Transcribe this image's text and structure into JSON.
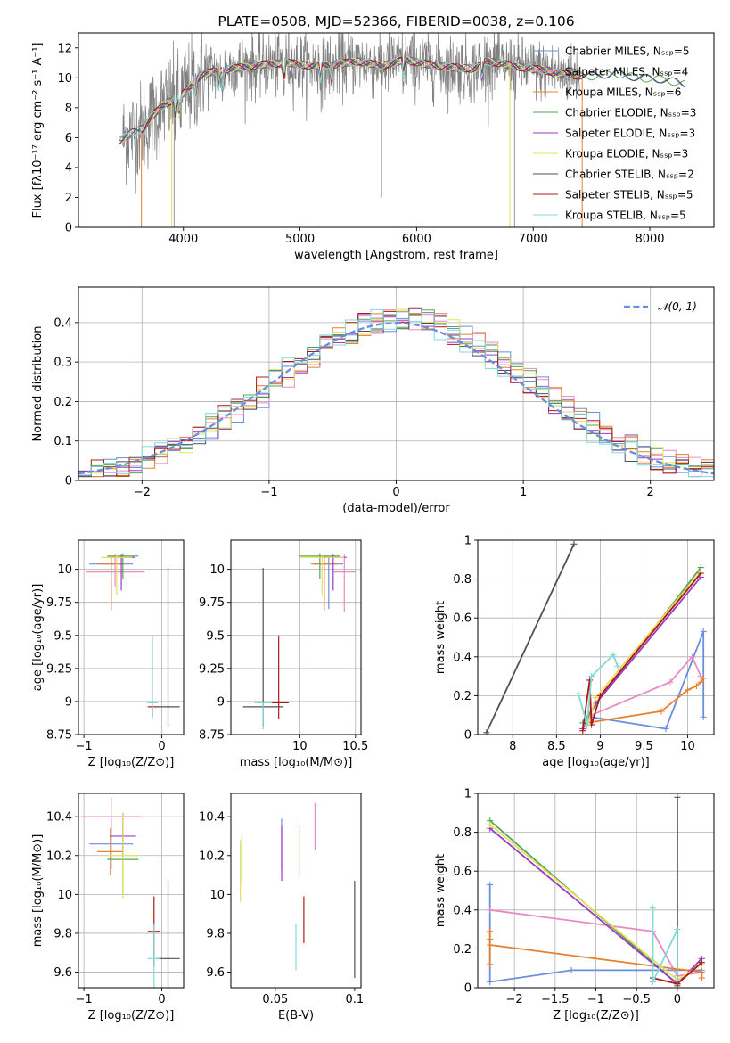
{
  "colors": {
    "series": [
      "#6a8ede",
      "#e88ac4",
      "#e87f2a",
      "#52a552",
      "#9a3bc4",
      "#e8e05a",
      "#505050",
      "#b01818",
      "#7fdada"
    ],
    "spectrum": "#808080",
    "normal": "#6a8ede",
    "grid": "#b0b0b0"
  },
  "chart_data": [
    {
      "id": "spectrum",
      "type": "line",
      "title": "PLATE=0508, MJD=52366, FIBERID=0038, z=0.106",
      "xlabel": "wavelength [Angstrom, rest frame]",
      "ylabel": "Flux [fλ10⁻¹⁷ erg cm⁻² s⁻¹ A⁻¹]",
      "xlim": [
        3100,
        8550
      ],
      "ylim": [
        0,
        13
      ],
      "xticks": [
        4000,
        5000,
        6000,
        7000,
        8000
      ],
      "yticks": [
        0,
        2,
        4,
        6,
        8,
        10,
        12
      ],
      "grid": false,
      "legend_position": "right",
      "legend": [
        "Chabrier MILES, Nₛₛₚ=5",
        "Salpeter MILES, Nₛₛₚ=4",
        "Kroupa MILES, Nₛₛₚ=6",
        "Chabrier ELODIE, Nₛₛₚ=3",
        "Salpeter ELODIE, Nₛₛₚ=3",
        "Kroupa ELODIE, Nₛₛₚ=3",
        "Chabrier STELIB, Nₛₛₚ=2",
        "Salpeter STELIB, Nₛₛₚ=5",
        "Kroupa STELIB, Nₛₛₚ=5"
      ],
      "continuum": {
        "x": [
          3450,
          3550,
          3650,
          3750,
          3850,
          3950,
          4050,
          4150,
          4300,
          4500,
          4700,
          4900,
          5100,
          5300,
          5500,
          5700,
          5900,
          6100,
          6300,
          6500,
          6600,
          6700,
          6900,
          7100,
          7300,
          7500,
          7700,
          7900,
          8100,
          8300
        ],
        "y": [
          5.8,
          6.3,
          6.6,
          7.6,
          8.3,
          8.6,
          9.3,
          10.2,
          10.5,
          10.7,
          10.9,
          11.0,
          10.8,
          10.9,
          11.1,
          10.8,
          11.2,
          10.9,
          10.7,
          10.6,
          11.1,
          11.0,
          10.7,
          10.5,
          10.2,
          10.1,
          10.3,
          10.0,
          9.9,
          9.6
        ]
      }
    },
    {
      "id": "residuals",
      "type": "line",
      "xlabel": "(data-model)/error",
      "ylabel": "Normed distribution",
      "xlim": [
        -2.5,
        2.5
      ],
      "ylim": [
        0,
        0.49
      ],
      "xticks": [
        -2,
        -1,
        0,
        1,
        2
      ],
      "yticks": [
        0.0,
        0.1,
        0.2,
        0.3,
        0.4
      ],
      "grid": true,
      "legend_position": "top-right",
      "legend": [
        "𝒩(0, 1)"
      ]
    },
    {
      "id": "age-vs-Z",
      "type": "scatter",
      "xlabel": "Z [log₁₀(Z/Z⊙)]",
      "ylabel": "age  [log₁₀(age/yr)]",
      "xlim": [
        -1.07,
        0.28
      ],
      "ylim": [
        8.75,
        10.22
      ],
      "xticks": [
        -1,
        0
      ],
      "yticks": [
        8.75,
        9.0,
        9.25,
        9.5,
        9.75,
        10.0
      ],
      "grid": true,
      "points": [
        {
          "x": -0.65,
          "y": 10.04,
          "xerr": 0.28,
          "yerr": [
            0.34,
            0.05
          ]
        },
        {
          "x": -0.6,
          "y": 9.98,
          "xerr": 0.38,
          "yerr": [
            0.11,
            0.13
          ]
        },
        {
          "x": -0.65,
          "y": 10.04,
          "xerr": 0.17,
          "yerr": [
            0.35,
            0.06
          ]
        },
        {
          "x": -0.5,
          "y": 10.1,
          "xerr": 0.2,
          "yerr": [
            0.17,
            0.02
          ]
        },
        {
          "x": -0.52,
          "y": 10.09,
          "xerr": 0.17,
          "yerr": [
            0.25,
            0.02
          ]
        },
        {
          "x": -0.58,
          "y": 10.09,
          "xerr": 0.2,
          "yerr": [
            0.29,
            0.02
          ]
        },
        {
          "x": 0.08,
          "y": 8.96,
          "xerr": 0.15,
          "yerr": [
            0.15,
            1.05
          ]
        },
        {
          "x": -0.12,
          "y": 8.96,
          "xerr": 0.06,
          "yerr": [
            0.07,
            0.0
          ]
        },
        {
          "x": -0.12,
          "y": 8.99,
          "xerr": 0.07,
          "yerr": [
            0.12,
            0.51
          ]
        }
      ]
    },
    {
      "id": "age-vs-mass",
      "type": "scatter",
      "xlabel": "mass [log₁₀(M/M⊙)]",
      "ylabel": "",
      "xlim": [
        9.38,
        10.55
      ],
      "ylim": [
        8.75,
        10.22
      ],
      "xticks": [
        10.0,
        10.5
      ],
      "yticks": [
        8.75,
        9.0,
        9.25,
        9.5,
        9.75,
        10.0
      ],
      "grid": true,
      "points": [
        {
          "x": 10.26,
          "y": 10.04,
          "xerr": 0.13,
          "yerr": [
            0.34,
            0.05
          ]
        },
        {
          "x": 10.4,
          "y": 9.98,
          "xerr": 0.1,
          "yerr": [
            0.3,
            0.13
          ]
        },
        {
          "x": 10.22,
          "y": 10.04,
          "xerr": 0.12,
          "yerr": [
            0.35,
            0.06
          ]
        },
        {
          "x": 10.18,
          "y": 10.1,
          "xerr": 0.18,
          "yerr": [
            0.17,
            0.02
          ]
        },
        {
          "x": 10.3,
          "y": 10.09,
          "xerr": 0.12,
          "yerr": [
            0.25,
            0.02
          ]
        },
        {
          "x": 10.2,
          "y": 10.09,
          "xerr": 0.2,
          "yerr": [
            0.29,
            0.02
          ]
        },
        {
          "x": 9.67,
          "y": 8.96,
          "xerr": 0.18,
          "yerr": [
            0.15,
            1.05
          ]
        },
        {
          "x": 9.81,
          "y": 8.99,
          "xerr": 0.09,
          "yerr": [
            0.12,
            0.51
          ]
        },
        {
          "x": 9.67,
          "y": 8.99,
          "xerr": 0.08,
          "yerr": [
            0.2,
            0.0
          ]
        }
      ]
    },
    {
      "id": "weight-vs-age",
      "type": "line",
      "xlabel": "age  [log₁₀(age/yr)]",
      "ylabel": "mass weight",
      "xlim": [
        7.6,
        10.3
      ],
      "ylim": [
        0,
        1
      ],
      "xticks": [
        8.0,
        8.5,
        9.0,
        9.5,
        10.0
      ],
      "yticks": [
        0.0,
        0.2,
        0.4,
        0.6,
        0.8,
        1.0
      ],
      "grid": true,
      "series": [
        {
          "x": [
            8.9,
            9.75,
            10.18,
            10.18
          ],
          "y": [
            0.09,
            0.03,
            0.53,
            0.09
          ]
        },
        {
          "x": [
            8.9,
            9.8,
            10.05,
            10.15,
            10.18
          ],
          "y": [
            0.1,
            0.27,
            0.4,
            0.3,
            0.29
          ]
        },
        {
          "x": [
            8.85,
            9.7,
            10.0,
            10.1,
            10.15,
            10.18
          ],
          "y": [
            0.06,
            0.12,
            0.23,
            0.25,
            0.27,
            0.29
          ]
        },
        {
          "x": [
            8.8,
            8.95,
            10.15
          ],
          "y": [
            0.06,
            0.16,
            0.86
          ]
        },
        {
          "x": [
            8.8,
            8.95,
            10.15
          ],
          "y": [
            0.03,
            0.16,
            0.81
          ]
        },
        {
          "x": [
            8.85,
            8.95,
            10.15
          ],
          "y": [
            0.04,
            0.19,
            0.84
          ]
        },
        {
          "x": [
            7.7,
            8.7
          ],
          "y": [
            0.01,
            0.98
          ]
        },
        {
          "x": [
            8.8,
            8.88,
            8.9,
            9.0,
            10.15
          ],
          "y": [
            0.02,
            0.28,
            0.05,
            0.2,
            0.83
          ]
        },
        {
          "x": [
            8.75,
            8.85,
            8.9,
            9.15,
            9.2
          ],
          "y": [
            0.21,
            0.05,
            0.3,
            0.41,
            0.35
          ]
        }
      ]
    },
    {
      "id": "mass-vs-Z",
      "type": "scatter",
      "xlabel": "Z [log₁₀(Z/Z⊙)]",
      "ylabel": "mass [log₁₀(M/M⊙)]",
      "xlim": [
        -1.07,
        0.28
      ],
      "ylim": [
        9.52,
        10.52
      ],
      "xticks": [
        -1,
        0
      ],
      "yticks": [
        9.6,
        9.8,
        10.0,
        10.2,
        10.4
      ],
      "grid": true,
      "points": [
        {
          "x": -0.65,
          "y": 10.26,
          "xerr": 0.28,
          "yerr": 0.13
        },
        {
          "x": -0.65,
          "y": 10.4,
          "xerr": 0.38,
          "yerr": 0.1
        },
        {
          "x": -0.66,
          "y": 10.22,
          "xerr": 0.17,
          "yerr": 0.12
        },
        {
          "x": -0.5,
          "y": 10.18,
          "xerr": 0.2,
          "yerr": 0.18
        },
        {
          "x": -0.5,
          "y": 10.3,
          "xerr": 0.17,
          "yerr": 0.12
        },
        {
          "x": -0.5,
          "y": 10.2,
          "xerr": 0.2,
          "yerr": 0.22
        },
        {
          "x": 0.08,
          "y": 9.67,
          "xerr": 0.15,
          "yerr": 0.4
        },
        {
          "x": -0.1,
          "y": 9.81,
          "xerr": 0.08,
          "yerr": 0.18
        },
        {
          "x": -0.1,
          "y": 9.67,
          "xerr": 0.08,
          "yerr": 0.18
        }
      ]
    },
    {
      "id": "mass-vs-ebv",
      "type": "scatter",
      "xlabel": "E(B-V)",
      "ylabel": "",
      "xlim": [
        0.022,
        0.104
      ],
      "ylim": [
        9.52,
        10.52
      ],
      "xticks": [
        0.05,
        0.1
      ],
      "yticks": [
        9.6,
        9.8,
        10.0,
        10.2,
        10.4
      ],
      "grid": false,
      "points": [
        {
          "x": 0.054,
          "y": 10.26,
          "yerr": 0.13
        },
        {
          "x": 0.075,
          "y": 10.35,
          "yerr": 0.12
        },
        {
          "x": 0.065,
          "y": 10.22,
          "yerr": 0.13
        },
        {
          "x": 0.029,
          "y": 10.18,
          "yerr": 0.13
        },
        {
          "x": 0.054,
          "y": 10.21,
          "yerr": 0.14
        },
        {
          "x": 0.028,
          "y": 10.12,
          "yerr": 0.16
        },
        {
          "x": 0.1,
          "y": 9.82,
          "yerr": 0.25
        },
        {
          "x": 0.068,
          "y": 9.87,
          "yerr": 0.12
        },
        {
          "x": 0.063,
          "y": 9.73,
          "yerr": 0.12
        }
      ]
    },
    {
      "id": "weight-vs-Z",
      "type": "line",
      "xlabel": "Z [log₁₀(Z/Z⊙)]",
      "ylabel": "mass weight",
      "xlim": [
        -2.45,
        0.45
      ],
      "ylim": [
        0,
        1
      ],
      "xticks": [
        -2.0,
        -1.5,
        -1.0,
        -0.5,
        0.0
      ],
      "yticks": [
        0.0,
        0.2,
        0.4,
        0.6,
        0.8,
        1.0
      ],
      "grid": true,
      "series": [
        {
          "x": [
            -2.3,
            -2.3,
            -1.3,
            -0.3,
            0.0,
            0.3
          ],
          "y": [
            0.53,
            0.03,
            0.09,
            0.09,
            0.09,
            0.09
          ]
        },
        {
          "x": [
            -2.3,
            -0.3,
            0.0,
            0.3,
            0.3
          ],
          "y": [
            0.4,
            0.29,
            0.06,
            0.08,
            0.05
          ]
        },
        {
          "x": [
            -2.3,
            -2.3,
            -2.3,
            -2.3,
            0.3,
            0.3
          ],
          "y": [
            0.29,
            0.25,
            0.12,
            0.22,
            0.08,
            0.05
          ]
        },
        {
          "x": [
            -2.3,
            0.0,
            0.3
          ],
          "y": [
            0.86,
            0.02,
            0.13
          ]
        },
        {
          "x": [
            -2.3,
            0.0,
            0.3
          ],
          "y": [
            0.82,
            0.02,
            0.15
          ]
        },
        {
          "x": [
            -2.3,
            0.0,
            0.3
          ],
          "y": [
            0.84,
            0.04,
            0.12
          ]
        },
        {
          "x": [
            0.0,
            0.0
          ],
          "y": [
            0.98,
            0.01
          ]
        },
        {
          "x": [
            -0.3,
            0.0,
            0.3
          ],
          "y": [
            0.05,
            0.02,
            0.13
          ]
        },
        {
          "x": [
            -0.3,
            -0.3,
            0.0,
            0.0
          ],
          "y": [
            0.41,
            0.03,
            0.3,
            0.04
          ]
        }
      ]
    }
  ]
}
